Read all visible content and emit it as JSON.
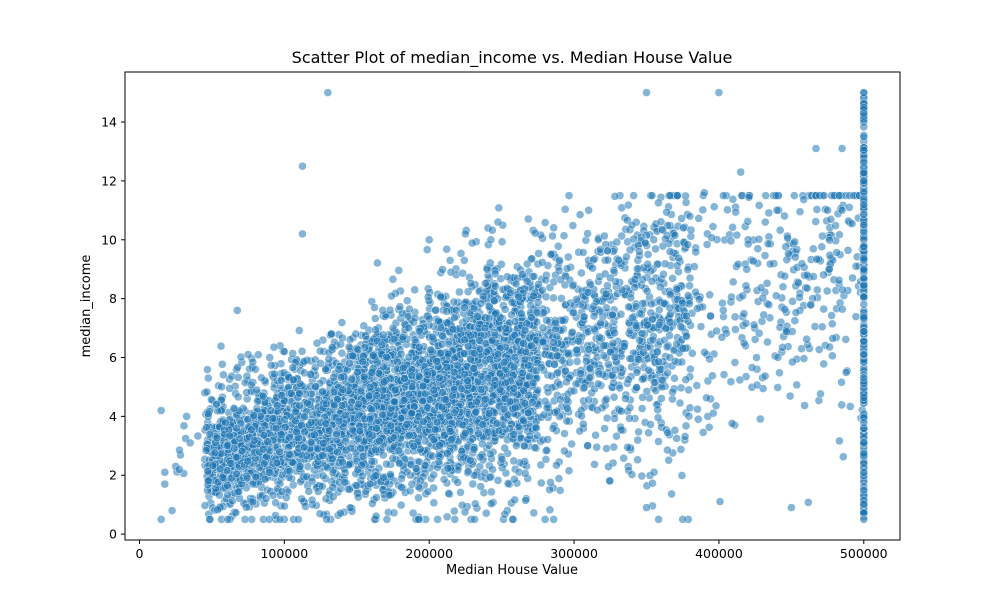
{
  "chart_data": {
    "type": "scatter",
    "title": "Scatter Plot of median_income vs. Median House Value",
    "xlabel": "Median House Value",
    "ylabel": "median_income",
    "xlim": [
      -10000,
      525000
    ],
    "ylim": [
      -0.2,
      15.7
    ],
    "x_ticks": [
      0,
      100000,
      200000,
      300000,
      400000,
      500000
    ],
    "y_ticks": [
      0,
      2,
      4,
      6,
      8,
      10,
      12,
      14
    ],
    "grid": false,
    "legend": "none",
    "point_color": "#1f77b4",
    "point_opacity": 0.55,
    "series": [
      {
        "points_sample": [
          [
            15000,
            0.5
          ],
          [
            15000,
            4.2
          ],
          [
            17500,
            2.1
          ],
          [
            17500,
            1.7
          ],
          [
            22500,
            0.8
          ],
          [
            25000,
            2.3
          ],
          [
            27500,
            2.2
          ],
          [
            32500,
            4.0
          ],
          [
            35000,
            3.1
          ],
          [
            47500,
            5.3
          ],
          [
            67500,
            7.6
          ],
          [
            75000,
            6.1
          ],
          [
            80000,
            5.6
          ],
          [
            100000,
            6.2
          ],
          [
            112500,
            12.5
          ],
          [
            112500,
            10.2
          ],
          [
            125000,
            5.8
          ],
          [
            130000,
            15.0
          ],
          [
            132500,
            6.8
          ],
          [
            137500,
            5.6
          ],
          [
            145000,
            5.8
          ],
          [
            175000,
            7.0
          ],
          [
            190000,
            8.3
          ],
          [
            200000,
            10.0
          ],
          [
            215000,
            8.9
          ],
          [
            225000,
            10.2
          ],
          [
            240000,
            9.0
          ],
          [
            242500,
            10.0
          ],
          [
            247500,
            10.6
          ],
          [
            260000,
            8.5
          ],
          [
            290000,
            9.3
          ],
          [
            310000,
            11.0
          ],
          [
            325000,
            8.7
          ],
          [
            340000,
            10.5
          ],
          [
            345000,
            9.6
          ],
          [
            350000,
            15.0
          ],
          [
            355000,
            10.0
          ],
          [
            380000,
            10.8
          ],
          [
            390000,
            11.6
          ],
          [
            400000,
            15.0
          ],
          [
            415000,
            12.3
          ],
          [
            432000,
            10.6
          ],
          [
            440000,
            11.0
          ],
          [
            467000,
            13.1
          ],
          [
            475000,
            11.0
          ],
          [
            485000,
            13.1
          ],
          [
            485000,
            11.0
          ],
          [
            490000,
            11.1
          ],
          [
            500001,
            15.0
          ],
          [
            500001,
            14.5
          ],
          [
            500001,
            13.5
          ],
          [
            500001,
            12.0
          ],
          [
            500001,
            10.5
          ],
          [
            500001,
            9.0
          ],
          [
            500001,
            0.5
          ],
          [
            350000,
            0.9
          ],
          [
            375000,
            0.5
          ],
          [
            450000,
            0.9
          ],
          [
            500001,
            1.5
          ],
          [
            280000,
            0.5
          ]
        ]
      }
    ]
  }
}
